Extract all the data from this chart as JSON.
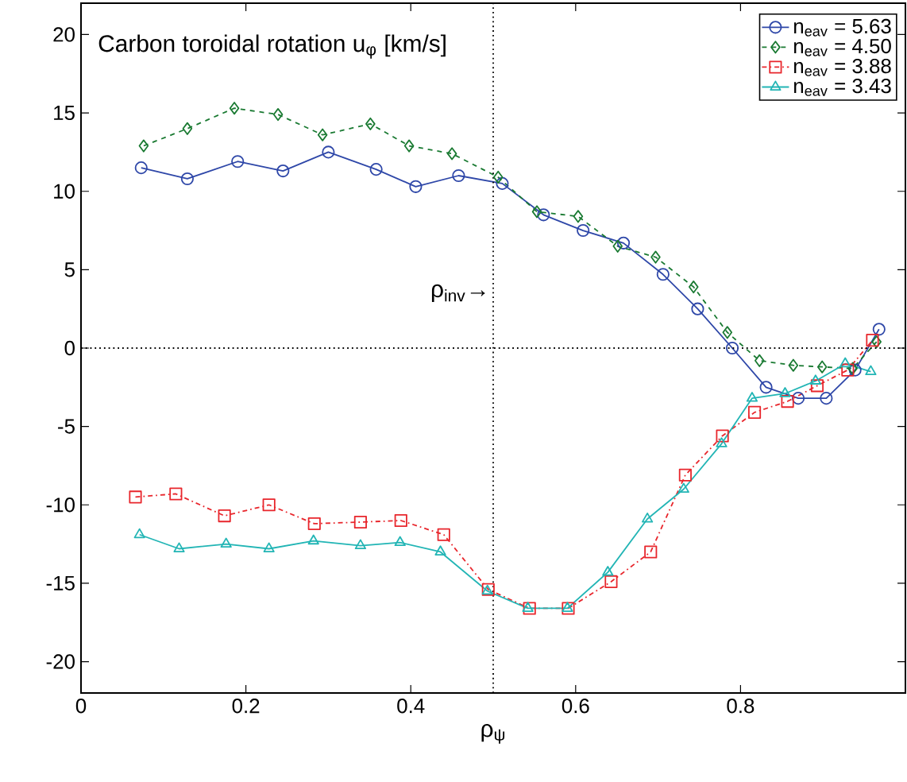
{
  "chart_data": {
    "type": "line",
    "title": "Carbon toroidal rotation u$_{φ}$ [km/s]",
    "xlabel": "ρ$_{ψ}$",
    "xlim": [
      0,
      1
    ],
    "ylim": [
      -22,
      22
    ],
    "xticks": [
      0,
      0.2,
      0.4,
      0.6,
      0.8
    ],
    "yticks": [
      -20,
      -15,
      -10,
      -5,
      0,
      5,
      10,
      15,
      20
    ],
    "grid": false,
    "legend": "top right",
    "ref_lines": [
      {
        "axis": "x",
        "value": 0.5,
        "line_style": "dotted",
        "color": "#000000"
      },
      {
        "axis": "y",
        "value": 0,
        "line_style": "dotted",
        "color": "#000000"
      }
    ],
    "annotations": [
      {
        "text": "ρ$_{inv}$→",
        "x": 0.5,
        "y": 3.5
      }
    ],
    "series": [
      {
        "name": "n$_{eav}$ = 5.63",
        "color": "#2e47a8",
        "marker": "circle",
        "line_style": "solid",
        "x": [
          0.073,
          0.129,
          0.19,
          0.245,
          0.3,
          0.358,
          0.406,
          0.458,
          0.511,
          0.561,
          0.609,
          0.658,
          0.706,
          0.748,
          0.79,
          0.831,
          0.87,
          0.904,
          0.939,
          0.968
        ],
        "values": [
          11.5,
          10.8,
          11.9,
          11.3,
          12.5,
          11.4,
          10.3,
          11.0,
          10.5,
          8.5,
          7.5,
          6.7,
          4.7,
          2.5,
          0,
          -2.5,
          -3.2,
          -3.2,
          -1.4,
          1.2
        ]
      },
      {
        "name": "n$_{eav}$ = 4.50",
        "color": "#1a7a32",
        "marker": "diamond",
        "line_style": "dashed",
        "x": [
          0.076,
          0.129,
          0.186,
          0.239,
          0.293,
          0.351,
          0.398,
          0.45,
          0.506,
          0.553,
          0.603,
          0.651,
          0.697,
          0.743,
          0.784,
          0.823,
          0.864,
          0.899,
          0.936,
          0.965
        ],
        "values": [
          12.9,
          14.0,
          15.3,
          14.9,
          13.6,
          14.3,
          12.9,
          12.4,
          10.9,
          8.7,
          8.4,
          6.5,
          5.8,
          3.9,
          1.0,
          -0.8,
          -1.1,
          -1.2,
          -1.3,
          0.4
        ]
      },
      {
        "name": "n$_{eav}$ = 3.88",
        "color": "#e8262c",
        "marker": "square",
        "line_style": "dashdot",
        "x": [
          0.066,
          0.115,
          0.174,
          0.228,
          0.283,
          0.339,
          0.388,
          0.44,
          0.494,
          0.544,
          0.591,
          0.643,
          0.691,
          0.733,
          0.778,
          0.817,
          0.857,
          0.893,
          0.93,
          0.96
        ],
        "values": [
          -9.5,
          -9.3,
          -10.7,
          -10.0,
          -11.2,
          -11.1,
          -11.0,
          -11.9,
          -15.4,
          -16.6,
          -16.6,
          -14.9,
          -13.0,
          -8.1,
          -5.6,
          -4.1,
          -3.4,
          -2.4,
          -1.4,
          0.5
        ]
      },
      {
        "name": "n$_{eav}$ = 3.43",
        "color": "#22b5b5",
        "marker": "triangle",
        "line_style": "solid",
        "x": [
          0.071,
          0.119,
          0.176,
          0.228,
          0.282,
          0.339,
          0.387,
          0.436,
          0.493,
          0.542,
          0.59,
          0.639,
          0.687,
          0.731,
          0.777,
          0.814,
          0.854,
          0.891,
          0.927,
          0.958
        ],
        "values": [
          -11.9,
          -12.8,
          -12.5,
          -12.8,
          -12.3,
          -12.6,
          -12.4,
          -13.0,
          -15.5,
          -16.6,
          -16.6,
          -14.3,
          -10.9,
          -9.0,
          -6.1,
          -3.2,
          -2.9,
          -2.1,
          -1.0,
          -1.5
        ]
      }
    ]
  }
}
